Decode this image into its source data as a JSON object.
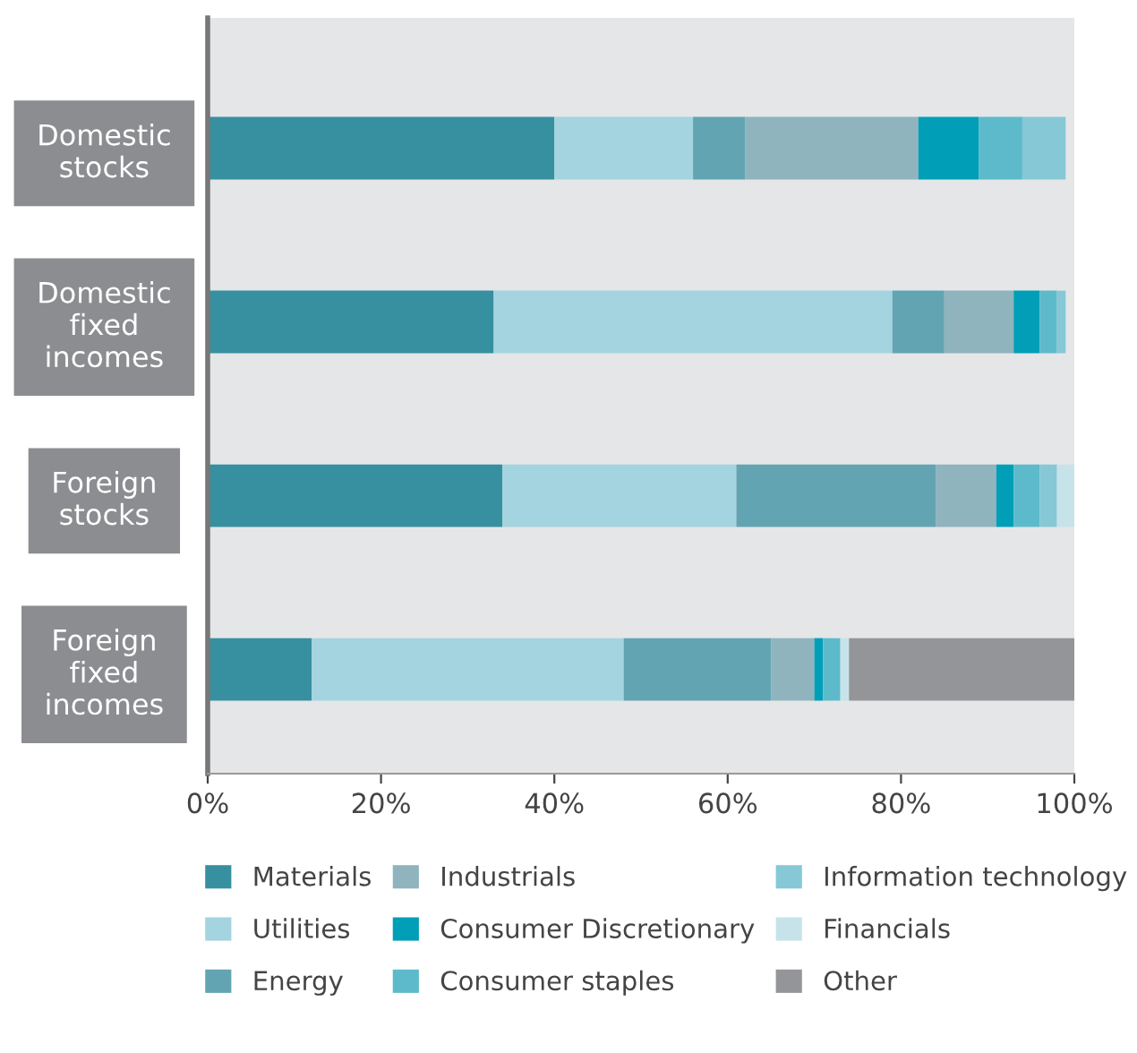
{
  "chart_data": {
    "type": "bar",
    "orientation": "horizontal",
    "stacked": true,
    "categories": [
      "Domestic\nstocks",
      "Domestic\nfixed\nincomes",
      "Foreign\nstocks",
      "Foreign\nfixed\nincomes"
    ],
    "series": [
      {
        "name": "Materials",
        "color": "#3690a0",
        "values": [
          40,
          33,
          34,
          12
        ]
      },
      {
        "name": "Utilities",
        "color": "#a3d4df",
        "values": [
          16,
          46,
          27,
          36
        ]
      },
      {
        "name": "Energy",
        "color": "#63a4b3",
        "values": [
          6,
          6,
          23,
          17
        ]
      },
      {
        "name": "Industrials",
        "color": "#8fb4be",
        "values": [
          20,
          8,
          7,
          5
        ]
      },
      {
        "name": "Consumer Discretionary",
        "color": "#019eb7",
        "values": [
          7,
          3,
          2,
          1
        ]
      },
      {
        "name": "Consumer staples",
        "color": "#5dbacb",
        "values": [
          5,
          2,
          3,
          2
        ]
      },
      {
        "name": "Information technology",
        "color": "#86c8d6",
        "values": [
          5,
          1,
          2,
          0
        ]
      },
      {
        "name": "Financials",
        "color": "#c6e3e9",
        "values": [
          0,
          0,
          2,
          1
        ]
      },
      {
        "name": "Other",
        "color": "#949598",
        "values": [
          0,
          0,
          0,
          26
        ]
      }
    ],
    "xlim": [
      0,
      100
    ],
    "xticks": [
      {
        "value": 0,
        "label": "0%"
      },
      {
        "value": 20,
        "label": "20%"
      },
      {
        "value": 40,
        "label": "40%"
      },
      {
        "value": 60,
        "label": "60%"
      },
      {
        "value": 80,
        "label": "80%"
      },
      {
        "value": 100,
        "label": "100%"
      }
    ],
    "grid": false,
    "legend": "bottom"
  }
}
